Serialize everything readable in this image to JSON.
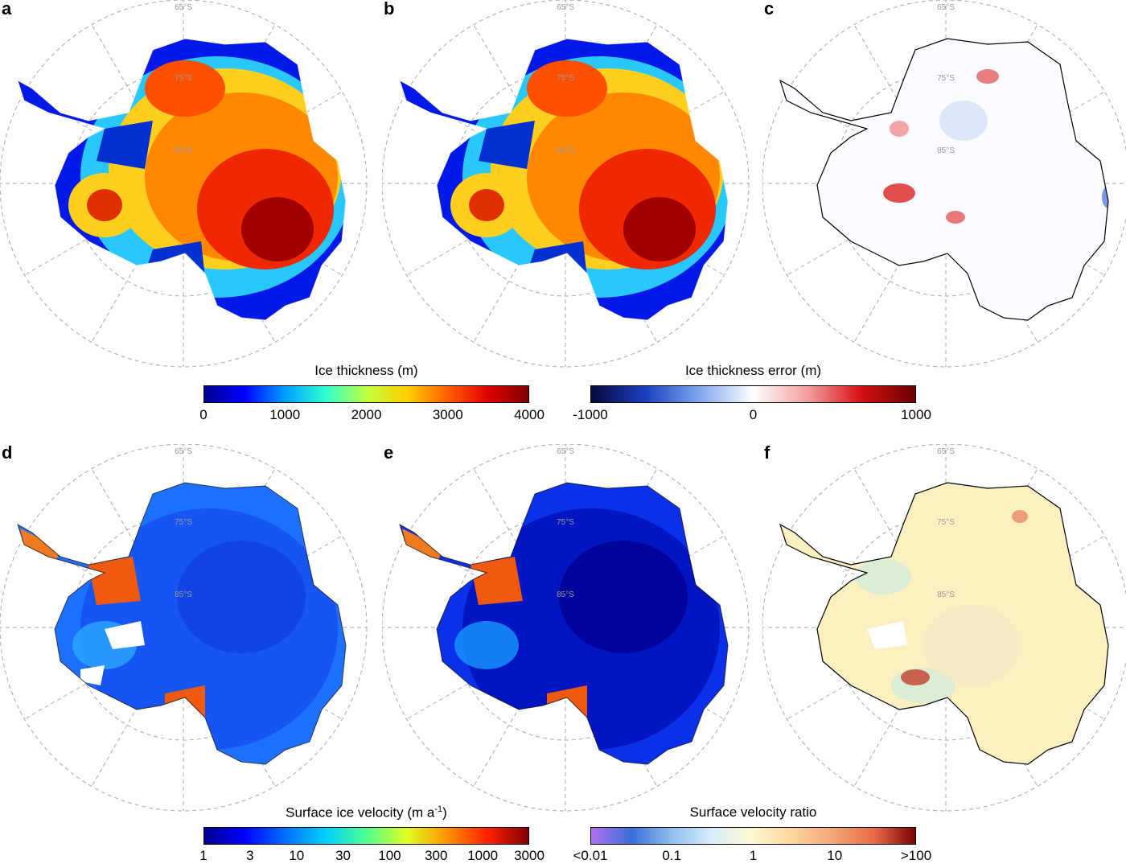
{
  "panels": [
    {
      "label": "a",
      "colormap": "thickness",
      "lat1": "65°S",
      "lat2": "75°S",
      "lat3": "85°S"
    },
    {
      "label": "b",
      "colormap": "thickness",
      "lat1": "65°S",
      "lat2": "75°S",
      "lat3": "85°S"
    },
    {
      "label": "c",
      "colormap": "error",
      "lat1": "65°S",
      "lat2": "75°S",
      "lat3": "85°S"
    },
    {
      "label": "d",
      "colormap": "velocity",
      "lat1": "65°S",
      "lat2": "75°S",
      "lat3": "85°S"
    },
    {
      "label": "e",
      "colormap": "velocity",
      "lat1": "65°S",
      "lat2": "75°S",
      "lat3": "85°S"
    },
    {
      "label": "f",
      "colormap": "ratio",
      "lat1": "65°S",
      "lat2": "75°S",
      "lat3": "85°S"
    }
  ],
  "colorbars": {
    "thickness": {
      "title": "Ice thickness (m)",
      "ticks": [
        "0",
        "1000",
        "2000",
        "3000",
        "4000"
      ]
    },
    "error": {
      "title": "Ice thickness error (m)",
      "ticks": [
        "-1000",
        "0",
        "1000"
      ]
    },
    "velocity": {
      "title_main": "Surface ice velocity (m a",
      "title_sup": "-1",
      "title_end": ")",
      "ticks": [
        "1",
        "3",
        "10",
        "30",
        "100",
        "300",
        "1000",
        "3000"
      ]
    },
    "ratio": {
      "title": "Surface velocity ratio",
      "ticks": [
        "<0.01",
        "0.1",
        "1",
        "10",
        ">100"
      ]
    }
  },
  "colors": {
    "thickness_scale": [
      "#00008f",
      "#0000ff",
      "#00a0ff",
      "#30ffd0",
      "#c0ff40",
      "#ffd000",
      "#ff6000",
      "#e00000",
      "#800000"
    ],
    "error_scale": [
      "#08083a",
      "#1a3fbf",
      "#7fa6ee",
      "#ffffff",
      "#f3a0a0",
      "#d51010",
      "#6a0000"
    ],
    "velocity_scale": [
      "#00008f",
      "#0000ff",
      "#0070ff",
      "#00d0ff",
      "#50ff90",
      "#e0ff20",
      "#ff9000",
      "#ff2000",
      "#800000"
    ],
    "ratio_scale": [
      "#b070f0",
      "#3b6fd8",
      "#8fc0ef",
      "#dbeefa",
      "#fff8cf",
      "#fcd59a",
      "#f4a374",
      "#e86a4a",
      "#7a0000"
    ]
  }
}
